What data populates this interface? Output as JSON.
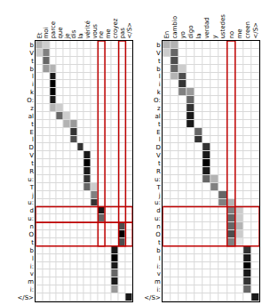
{
  "chart_data": [
    {
      "type": "heatmap",
      "x": [
        "Et",
        "moi",
        "parce",
        "que",
        "je",
        "dis",
        "la",
        "vérité",
        "vous",
        "ne",
        "me",
        "croyez",
        "pas",
        "</S>"
      ],
      "y": [
        "b",
        "V",
        "t",
        "b",
        "l",
        "i",
        "k",
        "O:",
        "z",
        "al",
        "t",
        "E",
        "l",
        "D",
        "V",
        "t",
        "R",
        "u:",
        "T",
        "j",
        "u:",
        "d",
        "u:",
        "n",
        "O",
        "t",
        "b",
        "l",
        "i:",
        "v",
        "m",
        "i:",
        "</S>"
      ],
      "zlim": [
        0,
        1
      ],
      "highlight_columns": [
        9,
        12
      ],
      "highlight_rows": [
        [
          21,
          22
        ],
        [
          23,
          25
        ]
      ],
      "z": [
        [
          0.3,
          0.2,
          0,
          0,
          0,
          0,
          0,
          0,
          0,
          0,
          0,
          0,
          0,
          0
        ],
        [
          0.2,
          0.5,
          0,
          0,
          0,
          0,
          0,
          0,
          0,
          0,
          0,
          0,
          0,
          0
        ],
        [
          0,
          0.6,
          0,
          0,
          0,
          0,
          0,
          0,
          0,
          0,
          0,
          0,
          0,
          0
        ],
        [
          0,
          0.4,
          0.3,
          0,
          0,
          0,
          0,
          0,
          0,
          0,
          0,
          0,
          0,
          0
        ],
        [
          0,
          0,
          0.9,
          0,
          0,
          0,
          0,
          0,
          0,
          0,
          0,
          0,
          0,
          0
        ],
        [
          0,
          0,
          1,
          0,
          0,
          0,
          0,
          0,
          0,
          0,
          0,
          0,
          0,
          0
        ],
        [
          0,
          0,
          1,
          0,
          0,
          0,
          0,
          0,
          0,
          0,
          0,
          0,
          0,
          0
        ],
        [
          0,
          0,
          0.9,
          0,
          0,
          0,
          0,
          0,
          0,
          0,
          0,
          0,
          0,
          0
        ],
        [
          0,
          0,
          0.3,
          0.2,
          0,
          0,
          0,
          0,
          0,
          0,
          0,
          0,
          0,
          0
        ],
        [
          0,
          0,
          0,
          0.6,
          0.2,
          0,
          0,
          0,
          0,
          0,
          0,
          0,
          0,
          0
        ],
        [
          0,
          0,
          0,
          0,
          0.3,
          0.4,
          0,
          0,
          0,
          0,
          0,
          0,
          0,
          0
        ],
        [
          0,
          0,
          0,
          0,
          0,
          0.8,
          0,
          0,
          0,
          0,
          0,
          0,
          0,
          0
        ],
        [
          0,
          0,
          0,
          0,
          0,
          0.7,
          0,
          0,
          0,
          0,
          0,
          0,
          0,
          0
        ],
        [
          0,
          0,
          0,
          0,
          0,
          0,
          0.8,
          0,
          0,
          0,
          0,
          0,
          0,
          0
        ],
        [
          0,
          0,
          0,
          0,
          0,
          0,
          0,
          0.9,
          0,
          0,
          0,
          0,
          0,
          0
        ],
        [
          0,
          0,
          0,
          0,
          0,
          0,
          0,
          1,
          0,
          0,
          0,
          0,
          0,
          0
        ],
        [
          0,
          0,
          0,
          0,
          0,
          0,
          0,
          0.9,
          0,
          0,
          0,
          0,
          0,
          0
        ],
        [
          0,
          0,
          0,
          0,
          0,
          0,
          0,
          0.8,
          0,
          0,
          0,
          0,
          0,
          0
        ],
        [
          0,
          0,
          0,
          0,
          0,
          0,
          0,
          0.6,
          0.2,
          0,
          0,
          0,
          0,
          0
        ],
        [
          0,
          0,
          0,
          0,
          0,
          0,
          0,
          0,
          0.5,
          0,
          0,
          0,
          0,
          0
        ],
        [
          0,
          0,
          0,
          0,
          0,
          0,
          0,
          0,
          0.8,
          0,
          0,
          0,
          0,
          0
        ],
        [
          0,
          0,
          0,
          0,
          0,
          0,
          0,
          0,
          0,
          0.9,
          0,
          0,
          0,
          0
        ],
        [
          0,
          0,
          0,
          0,
          0,
          0,
          0,
          0,
          0,
          0.6,
          0,
          0,
          0,
          0
        ],
        [
          0,
          0,
          0,
          0,
          0,
          0,
          0,
          0,
          0,
          0,
          0,
          0,
          0.7,
          0
        ],
        [
          0,
          0,
          0,
          0,
          0,
          0,
          0,
          0,
          0,
          0,
          0,
          0,
          1,
          0
        ],
        [
          0,
          0,
          0,
          0,
          0,
          0,
          0,
          0,
          0,
          0,
          0,
          0,
          0.7,
          0
        ],
        [
          0,
          0,
          0,
          0,
          0,
          0,
          0,
          0,
          0,
          0,
          0,
          0.9,
          0,
          0
        ],
        [
          0,
          0,
          0,
          0,
          0,
          0,
          0,
          0,
          0,
          0,
          0,
          1,
          0,
          0
        ],
        [
          0,
          0,
          0,
          0,
          0,
          0,
          0,
          0,
          0,
          0,
          0,
          0.9,
          0,
          0
        ],
        [
          0,
          0,
          0,
          0,
          0,
          0,
          0,
          0,
          0,
          0,
          0,
          0.6,
          0,
          0
        ],
        [
          0,
          0,
          0,
          0,
          0,
          0,
          0,
          0,
          0,
          0,
          0,
          0.9,
          0,
          0
        ],
        [
          0,
          0,
          0,
          0,
          0,
          0,
          0,
          0,
          0,
          0,
          0,
          0.4,
          0,
          0
        ],
        [
          0,
          0,
          0,
          0,
          0,
          0,
          0,
          0,
          0,
          0,
          0,
          0,
          0,
          0.9
        ]
      ]
    },
    {
      "type": "heatmap",
      "x": [
        "En",
        "cambio",
        "yo",
        "digo",
        "la",
        "verdad",
        "y",
        "ustedes",
        "no",
        "me",
        "creen",
        "</S>"
      ],
      "y": [
        "b",
        "V",
        "t",
        "b",
        "l",
        "i",
        "k",
        "O:",
        "z",
        "al",
        "t",
        "E",
        "l",
        "D",
        "V",
        "t",
        "R",
        "u:",
        "T",
        "j",
        "u:",
        "d",
        "u:",
        "n",
        "O",
        "t",
        "b",
        "l",
        "i:",
        "v",
        "m",
        "i:",
        "</S>"
      ],
      "zlim": [
        0,
        1
      ],
      "highlight_columns": [
        8
      ],
      "highlight_rows": [
        [
          21,
          25
        ]
      ],
      "z": [
        [
          0.3,
          0.3,
          0,
          0,
          0,
          0,
          0,
          0,
          0,
          0,
          0,
          0
        ],
        [
          0.2,
          0.6,
          0,
          0,
          0,
          0,
          0,
          0,
          0,
          0,
          0,
          0
        ],
        [
          0,
          0.7,
          0,
          0,
          0,
          0,
          0,
          0,
          0,
          0,
          0,
          0
        ],
        [
          0,
          0.6,
          0.2,
          0,
          0,
          0,
          0,
          0,
          0,
          0,
          0,
          0
        ],
        [
          0,
          0.3,
          0.7,
          0,
          0,
          0,
          0,
          0,
          0,
          0,
          0,
          0
        ],
        [
          0,
          0,
          0.8,
          0,
          0,
          0,
          0,
          0,
          0,
          0,
          0,
          0
        ],
        [
          0,
          0,
          0.5,
          0.4,
          0,
          0,
          0,
          0,
          0,
          0,
          0,
          0
        ],
        [
          0,
          0,
          0,
          0.6,
          0,
          0,
          0,
          0,
          0,
          0,
          0,
          0
        ],
        [
          0,
          0,
          0,
          0.8,
          0,
          0,
          0,
          0,
          0,
          0,
          0,
          0
        ],
        [
          0,
          0,
          0,
          0.9,
          0,
          0,
          0,
          0,
          0,
          0,
          0,
          0
        ],
        [
          0,
          0,
          0,
          0.9,
          0,
          0,
          0,
          0,
          0,
          0,
          0,
          0
        ],
        [
          0,
          0,
          0,
          0,
          0.6,
          0,
          0,
          0,
          0,
          0,
          0,
          0
        ],
        [
          0,
          0,
          0,
          0,
          0.8,
          0,
          0,
          0,
          0,
          0,
          0,
          0
        ],
        [
          0,
          0,
          0,
          0,
          0,
          0.8,
          0,
          0,
          0,
          0,
          0,
          0
        ],
        [
          0,
          0,
          0,
          0,
          0,
          0.9,
          0,
          0,
          0,
          0,
          0,
          0
        ],
        [
          0,
          0,
          0,
          0,
          0,
          1,
          0,
          0,
          0,
          0,
          0,
          0
        ],
        [
          0,
          0,
          0,
          0,
          0,
          0.9,
          0,
          0,
          0,
          0,
          0,
          0
        ],
        [
          0,
          0,
          0,
          0,
          0,
          0.6,
          0.3,
          0,
          0,
          0,
          0,
          0
        ],
        [
          0,
          0,
          0,
          0,
          0,
          0,
          0.5,
          0,
          0,
          0,
          0,
          0
        ],
        [
          0,
          0,
          0,
          0,
          0,
          0,
          0,
          0.6,
          0,
          0,
          0,
          0
        ],
        [
          0,
          0,
          0,
          0,
          0,
          0,
          0,
          0.5,
          0.3,
          0,
          0,
          0
        ],
        [
          0,
          0,
          0,
          0,
          0,
          0,
          0,
          0,
          0.5,
          0.2,
          0,
          0
        ],
        [
          0,
          0,
          0,
          0,
          0,
          0,
          0,
          0,
          0.6,
          0.2,
          0,
          0
        ],
        [
          0,
          0,
          0,
          0,
          0,
          0,
          0,
          0,
          0.6,
          0.3,
          0,
          0
        ],
        [
          0,
          0,
          0,
          0,
          0,
          0,
          0,
          0,
          0.7,
          0.2,
          0,
          0
        ],
        [
          0,
          0,
          0,
          0,
          0,
          0,
          0,
          0,
          0.5,
          0.1,
          0,
          0
        ],
        [
          0,
          0,
          0,
          0,
          0,
          0,
          0,
          0,
          0,
          0,
          0.8,
          0
        ],
        [
          0,
          0,
          0,
          0,
          0,
          0,
          0,
          0,
          0,
          0,
          0.9,
          0
        ],
        [
          0,
          0,
          0,
          0,
          0,
          0,
          0,
          0,
          0,
          0,
          1,
          0
        ],
        [
          0,
          0,
          0,
          0,
          0,
          0,
          0,
          0,
          0,
          0,
          0.9,
          0
        ],
        [
          0,
          0,
          0,
          0,
          0,
          0,
          0,
          0,
          0,
          0,
          0.8,
          0
        ],
        [
          0,
          0,
          0,
          0,
          0,
          0,
          0,
          0,
          0,
          0,
          0.6,
          0
        ],
        [
          0,
          0,
          0,
          0,
          0,
          0,
          0,
          0,
          0,
          0,
          0,
          0.9
        ]
      ]
    }
  ]
}
